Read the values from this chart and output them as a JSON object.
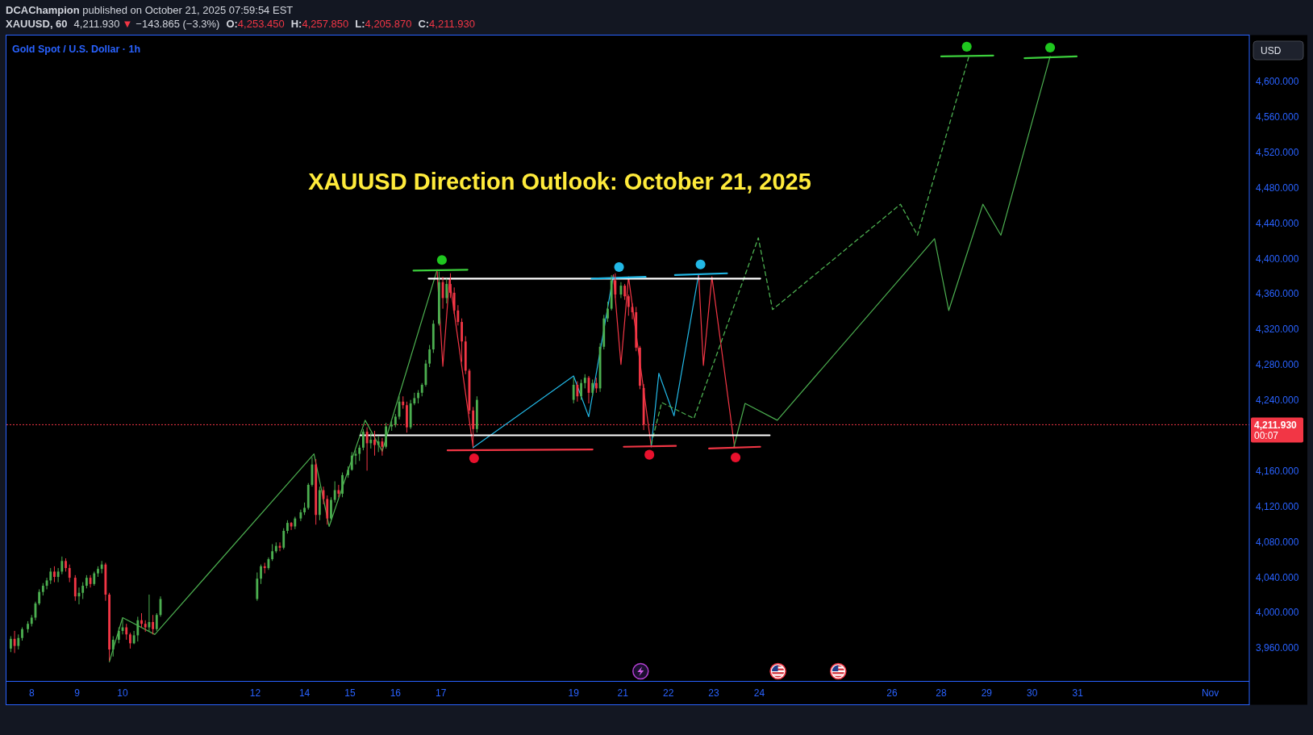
{
  "chart_data": {
    "type": "candlestick",
    "title": "XAUUSD Direction Outlook: October 21, 2025",
    "subtitle": "Gold Spot / U.S. Dollar · 1h",
    "annotations": [
      "DCAChampion published on October 21, 2025 07:59:54 EST",
      "XAUUSD, 60",
      "4,211.930",
      "▼",
      "−143.865 (−3.3%)",
      "O:4,253.450",
      "H:4,257.850",
      "L:4,205.870",
      "C:4,211.930",
      "USD",
      "00:07"
    ],
    "xlim": [
      "2025-10-07T10:42",
      "2025-11-03T18:36"
    ],
    "ylim": [
      3922,
      4652
    ],
    "xticks": [
      {
        "value": "2025-10-08",
        "label": "8"
      },
      {
        "value": "2025-10-09",
        "label": "9"
      },
      {
        "value": "2025-10-10",
        "label": "10"
      },
      {
        "value": "2025-10-12T22:00",
        "label": "12"
      },
      {
        "value": "2025-10-14",
        "label": "14"
      },
      {
        "value": "2025-10-15",
        "label": "15"
      },
      {
        "value": "2025-10-16",
        "label": "16"
      },
      {
        "value": "2025-10-17",
        "label": "17"
      },
      {
        "value": "2025-10-19T22:00",
        "label": "19"
      },
      {
        "value": "2025-10-21",
        "label": "21"
      },
      {
        "value": "2025-10-22",
        "label": "22"
      },
      {
        "value": "2025-10-23",
        "label": "23"
      },
      {
        "value": "2025-10-24",
        "label": "24"
      },
      {
        "value": "2025-10-26T22:00",
        "label": "26"
      },
      {
        "value": "2025-10-28",
        "label": "28"
      },
      {
        "value": "2025-10-29",
        "label": "29"
      },
      {
        "value": "2025-10-30",
        "label": "30"
      },
      {
        "value": "2025-10-31",
        "label": "31"
      },
      {
        "value": "2025-11-02T22:00",
        "label": "Nov"
      }
    ],
    "yticks": [
      {
        "value": 3960,
        "label": "3,960.000"
      },
      {
        "value": 4000,
        "label": "4,000.000"
      },
      {
        "value": 4040,
        "label": "4,040.000"
      },
      {
        "value": 4080,
        "label": "4,080.000"
      },
      {
        "value": 4120,
        "label": "4,120.000"
      },
      {
        "value": 4160,
        "label": "4,160.000"
      },
      {
        "value": 4240,
        "label": "4,240.000"
      },
      {
        "value": 4280,
        "label": "4,280.000"
      },
      {
        "value": 4320,
        "label": "4,320.000"
      },
      {
        "value": 4360,
        "label": "4,360.000"
      },
      {
        "value": 4400,
        "label": "4,400.000"
      },
      {
        "value": 4440,
        "label": "4,440.000"
      },
      {
        "value": 4480,
        "label": "4,480.000"
      },
      {
        "value": 4520,
        "label": "4,520.000"
      },
      {
        "value": 4560,
        "label": "4,560.000"
      },
      {
        "value": 4600,
        "label": "4,600.000"
      }
    ],
    "x": [
      "2025-10-07T13:00",
      "2025-10-07T15:00",
      "2025-10-07T17:00",
      "2025-10-07T19:00",
      "2025-10-07T22:00",
      "2025-10-08T00:00",
      "2025-10-08T02:00",
      "2025-10-08T04:00",
      "2025-10-08T06:00",
      "2025-10-08T08:00",
      "2025-10-08T10:00",
      "2025-10-08T12:00",
      "2025-10-08T14:00",
      "2025-10-08T16:00",
      "2025-10-08T18:00",
      "2025-10-08T20:00",
      "2025-10-08T23:00",
      "2025-10-09T01:00",
      "2025-10-09T03:00",
      "2025-10-09T05:00",
      "2025-10-09T07:00",
      "2025-10-09T09:00",
      "2025-10-09T11:00",
      "2025-10-09T13:00",
      "2025-10-09T15:00",
      "2025-10-09T17:00",
      "2025-10-09T19:00",
      "2025-10-09T22:00",
      "2025-10-10T00:00",
      "2025-10-10T02:00",
      "2025-10-10T04:00",
      "2025-10-10T06:00",
      "2025-10-10T08:00",
      "2025-10-10T10:00",
      "2025-10-10T12:00",
      "2025-10-10T14:00",
      "2025-10-10T16:00",
      "2025-10-10T18:00",
      "2025-10-10T20:00",
      "2025-10-12T23:00",
      "2025-10-13T01:00",
      "2025-10-13T03:00",
      "2025-10-13T05:00",
      "2025-10-13T07:00",
      "2025-10-13T09:00",
      "2025-10-13T11:00",
      "2025-10-13T13:00",
      "2025-10-13T15:00",
      "2025-10-13T17:00",
      "2025-10-13T19:00",
      "2025-10-13T22:00",
      "2025-10-14T00:00",
      "2025-10-14T02:00",
      "2025-10-14T04:00",
      "2025-10-14T06:00",
      "2025-10-14T08:00",
      "2025-10-14T10:00",
      "2025-10-14T12:00",
      "2025-10-14T14:00",
      "2025-10-14T16:00",
      "2025-10-14T18:00",
      "2025-10-14T20:00",
      "2025-10-14T23:00",
      "2025-10-15T01:00",
      "2025-10-15T03:00",
      "2025-10-15T05:00",
      "2025-10-15T07:00",
      "2025-10-15T09:00",
      "2025-10-15T11:00",
      "2025-10-15T13:00",
      "2025-10-15T15:00",
      "2025-10-15T17:00",
      "2025-10-15T19:00",
      "2025-10-15T22:00",
      "2025-10-16T00:00",
      "2025-10-16T02:00",
      "2025-10-16T04:00",
      "2025-10-16T06:00",
      "2025-10-16T08:00",
      "2025-10-16T10:00",
      "2025-10-16T12:00",
      "2025-10-16T14:00",
      "2025-10-16T16:00",
      "2025-10-16T18:00",
      "2025-10-16T20:00",
      "2025-10-16T23:00",
      "2025-10-17T01:00",
      "2025-10-17T03:00",
      "2025-10-17T05:00",
      "2025-10-17T07:00",
      "2025-10-17T09:00",
      "2025-10-17T11:00",
      "2025-10-17T13:00",
      "2025-10-17T15:00",
      "2025-10-17T17:00",
      "2025-10-17T19:00",
      "2025-10-19T22:00",
      "2025-10-20T00:00",
      "2025-10-20T02:00",
      "2025-10-20T04:00",
      "2025-10-20T06:00",
      "2025-10-20T08:00",
      "2025-10-20T10:00",
      "2025-10-20T12:00",
      "2025-10-20T14:00",
      "2025-10-20T16:00",
      "2025-10-20T18:00",
      "2025-10-20T20:00",
      "2025-10-20T23:00",
      "2025-10-21T01:00",
      "2025-10-21T03:00",
      "2025-10-21T05:00",
      "2025-10-21T07:00",
      "2025-10-21T09:00",
      "2025-10-21T11:00"
    ],
    "ohlc": [
      [
        3959,
        3973,
        3955,
        3970
      ],
      [
        3970,
        3979,
        3954,
        3962
      ],
      [
        3962,
        3975,
        3958,
        3971
      ],
      [
        3971,
        3983,
        3968,
        3981
      ],
      [
        3981,
        3990,
        3977,
        3987
      ],
      [
        3987,
        3997,
        3984,
        3994
      ],
      [
        3994,
        4012,
        3991,
        4010
      ],
      [
        4010,
        4026,
        4008,
        4023
      ],
      [
        4023,
        4033,
        4019,
        4030
      ],
      [
        4030,
        4039,
        4026,
        4036
      ],
      [
        4036,
        4050,
        4032,
        4046
      ],
      [
        4046,
        4052,
        4034,
        4040
      ],
      [
        4040,
        4050,
        4034,
        4046
      ],
      [
        4046,
        4063,
        4043,
        4058
      ],
      [
        4058,
        4061,
        4046,
        4050
      ],
      [
        4050,
        4054,
        4034,
        4039
      ],
      [
        4039,
        4042,
        4013,
        4018
      ],
      [
        4018,
        4028,
        4009,
        4022
      ],
      [
        4022,
        4034,
        4015,
        4030
      ],
      [
        4030,
        4042,
        4027,
        4039
      ],
      [
        4039,
        4042,
        4028,
        4032
      ],
      [
        4032,
        4046,
        4030,
        4044
      ],
      [
        4044,
        4052,
        4040,
        4049
      ],
      [
        4049,
        4058,
        4044,
        4054
      ],
      [
        4054,
        4056,
        4013,
        4020
      ],
      [
        4020,
        4022,
        3945,
        3958
      ],
      [
        3958,
        3973,
        3950,
        3969
      ],
      [
        3969,
        3983,
        3965,
        3979
      ],
      [
        3979,
        3993,
        3975,
        3983
      ],
      [
        3983,
        3987,
        3969,
        3975
      ],
      [
        3975,
        3977,
        3959,
        3965
      ],
      [
        3965,
        3979,
        3964,
        3974
      ],
      [
        3974,
        3995,
        3967,
        3991
      ],
      [
        3991,
        3999,
        3983,
        3987
      ],
      [
        3987,
        3991,
        3978,
        3983
      ],
      [
        3983,
        4020,
        3979,
        3989
      ],
      [
        3989,
        3997,
        3975,
        3981
      ],
      [
        3981,
        3999,
        3979,
        3997
      ],
      [
        3997,
        4018,
        3995,
        4015
      ],
      [
        4015,
        4045,
        4013,
        4038
      ],
      [
        4038,
        4054,
        4032,
        4052
      ],
      [
        4052,
        4056,
        4044,
        4050
      ],
      [
        4050,
        4062,
        4048,
        4060
      ],
      [
        4060,
        4077,
        4058,
        4069
      ],
      [
        4069,
        4079,
        4067,
        4075
      ],
      [
        4075,
        4079,
        4069,
        4073
      ],
      [
        4073,
        4095,
        4071,
        4092
      ],
      [
        4092,
        4104,
        4089,
        4101
      ],
      [
        4101,
        4102,
        4093,
        4097
      ],
      [
        4097,
        4108,
        4094,
        4106
      ],
      [
        4106,
        4116,
        4103,
        4113
      ],
      [
        4113,
        4124,
        4110,
        4118
      ],
      [
        4118,
        4146,
        4116,
        4144
      ],
      [
        4144,
        4175,
        4142,
        4167
      ],
      [
        4167,
        4173,
        4099,
        4110
      ],
      [
        4110,
        4142,
        4104,
        4138
      ],
      [
        4138,
        4142,
        4122,
        4128
      ],
      [
        4128,
        4132,
        4099,
        4106
      ],
      [
        4106,
        4130,
        4102,
        4127
      ],
      [
        4127,
        4148,
        4124,
        4138
      ],
      [
        4138,
        4144,
        4130,
        4134
      ],
      [
        4134,
        4158,
        4130,
        4155
      ],
      [
        4155,
        4165,
        4152,
        4161
      ],
      [
        4161,
        4181,
        4160,
        4177
      ],
      [
        4177,
        4183,
        4167,
        4179
      ],
      [
        4179,
        4189,
        4171,
        4186
      ],
      [
        4186,
        4207,
        4183,
        4204
      ],
      [
        4204,
        4209,
        4160,
        4191
      ],
      [
        4191,
        4203,
        4185,
        4195
      ],
      [
        4195,
        4205,
        4177,
        4189
      ],
      [
        4189,
        4199,
        4181,
        4193
      ],
      [
        4193,
        4197,
        4177,
        4187
      ],
      [
        4187,
        4214,
        4185,
        4210
      ],
      [
        4210,
        4216,
        4205,
        4212
      ],
      [
        4212,
        4224,
        4209,
        4221
      ],
      [
        4221,
        4244,
        4218,
        4238
      ],
      [
        4238,
        4244,
        4230,
        4234
      ],
      [
        4234,
        4238,
        4203,
        4209
      ],
      [
        4209,
        4240,
        4207,
        4236
      ],
      [
        4236,
        4248,
        4234,
        4242
      ],
      [
        4242,
        4251,
        4236,
        4248
      ],
      [
        4248,
        4259,
        4244,
        4257
      ],
      [
        4257,
        4285,
        4255,
        4281
      ],
      [
        4281,
        4302,
        4277,
        4297
      ],
      [
        4297,
        4330,
        4293,
        4326
      ],
      [
        4326,
        4385,
        4324,
        4373
      ],
      [
        4373,
        4379,
        4343,
        4355
      ],
      [
        4355,
        4377,
        4349,
        4371
      ],
      [
        4371,
        4383,
        4355,
        4361
      ],
      [
        4361,
        4367,
        4337,
        4341
      ],
      [
        4341,
        4347,
        4324,
        4328
      ],
      [
        4328,
        4332,
        4283,
        4306
      ],
      [
        4306,
        4312,
        4269,
        4273
      ],
      [
        4273,
        4275,
        4224,
        4228
      ],
      [
        4228,
        4232,
        4187,
        4207
      ],
      [
        4207,
        4244,
        4203,
        4240
      ],
      [
        4240,
        4265,
        4236,
        4257
      ],
      [
        4257,
        4261,
        4238,
        4244
      ],
      [
        4244,
        4263,
        4240,
        4259
      ],
      [
        4259,
        4269,
        4253,
        4265
      ],
      [
        4265,
        4267,
        4236,
        4248
      ],
      [
        4248,
        4263,
        4244,
        4259
      ],
      [
        4259,
        4265,
        4248,
        4253
      ],
      [
        4253,
        4304,
        4249,
        4300
      ],
      [
        4300,
        4336,
        4297,
        4332
      ],
      [
        4332,
        4351,
        4328,
        4343
      ],
      [
        4343,
        4381,
        4341,
        4375
      ],
      [
        4375,
        4383,
        4355,
        4359
      ],
      [
        4359,
        4373,
        4355,
        4369
      ],
      [
        4369,
        4371,
        4353,
        4357
      ],
      [
        4357,
        4359,
        4335,
        4345
      ],
      [
        4345,
        4349,
        4331,
        4339
      ],
      [
        4339,
        4345,
        4295,
        4299
      ],
      [
        4299,
        4301,
        4252,
        4256
      ],
      [
        4253.45,
        4257.85,
        4205.87,
        4211.93
      ]
    ],
    "colors": [
      "#4caf50",
      "#f23645",
      "#4caf50",
      "#4caf50",
      "#4caf50",
      "#4caf50",
      "#4caf50",
      "#4caf50",
      "#4caf50",
      "#4caf50",
      "#4caf50",
      "#f23645",
      "#4caf50",
      "#4caf50",
      "#f23645",
      "#f23645",
      "#f23645",
      "#4caf50",
      "#4caf50",
      "#4caf50",
      "#f23645",
      "#4caf50",
      "#4caf50",
      "#4caf50",
      "#f23645",
      "#f23645",
      "#4caf50",
      "#4caf50",
      "#4caf50",
      "#f23645",
      "#f23645",
      "#4caf50",
      "#4caf50",
      "#f23645",
      "#f23645",
      "#4caf50",
      "#f23645",
      "#4caf50",
      "#4caf50",
      "#4caf50",
      "#4caf50",
      "#f23645",
      "#4caf50",
      "#4caf50",
      "#4caf50",
      "#f23645",
      "#4caf50",
      "#4caf50",
      "#f23645",
      "#4caf50",
      "#4caf50",
      "#4caf50",
      "#4caf50",
      "#4caf50",
      "#f23645",
      "#4caf50",
      "#f23645",
      "#f23645",
      "#4caf50",
      "#4caf50",
      "#f23645",
      "#4caf50",
      "#4caf50",
      "#4caf50",
      "#4caf50",
      "#4caf50",
      "#4caf50",
      "#f23645",
      "#4caf50",
      "#f23645",
      "#4caf50",
      "#f23645",
      "#4caf50",
      "#4caf50",
      "#4caf50",
      "#4caf50",
      "#f23645",
      "#f23645",
      "#4caf50",
      "#4caf50",
      "#4caf50",
      "#4caf50",
      "#4caf50",
      "#4caf50",
      "#4caf50",
      "#4caf50",
      "#f23645",
      "#4caf50",
      "#f23645",
      "#f23645",
      "#f23645",
      "#f23645",
      "#f23645",
      "#f23645",
      "#f23645",
      "#4caf50",
      "#4caf50",
      "#f23645",
      "#4caf50",
      "#4caf50",
      "#f23645",
      "#4caf50",
      "#f23645",
      "#4caf50",
      "#4caf50",
      "#4caf50",
      "#4caf50",
      "#f23645",
      "#4caf50",
      "#f23645",
      "#f23645",
      "#f23645",
      "#f23645",
      "#f23645",
      "#f23645"
    ],
    "series": [
      {
        "type": "line",
        "color": "#4caf50",
        "x": [
          "2025-10-09T17:00",
          "2025-10-10T00:00",
          "2025-10-10T17:00",
          "2025-10-14T05:00",
          "2025-10-14T13:00",
          "2025-10-15T08:00",
          "2025-10-15T17:00",
          "2025-10-16T22:00"
        ],
        "values": [
          3944,
          3994,
          3975,
          4179,
          4097,
          4217,
          4182,
          4387
        ]
      },
      {
        "type": "line",
        "color": "#f23645",
        "x": [
          "2025-10-16T22:00",
          "2025-10-17T01:00",
          "2025-10-17T04:30",
          "2025-10-17T17:00"
        ],
        "values": [
          4385,
          4278,
          4377,
          4186
        ]
      },
      {
        "type": "line",
        "color": "#22b8e6",
        "x": [
          "2025-10-17T17:00",
          "2025-10-19T22:00",
          "2025-10-20T06:00",
          "2025-10-20T19:00"
        ],
        "values": [
          4186,
          4267,
          4221,
          4381
        ]
      },
      {
        "type": "line",
        "color": "#f23645",
        "x": [
          "2025-10-20T19:00",
          "2025-10-20T23:00",
          "2025-10-21T03:00",
          "2025-10-21T15:00"
        ],
        "values": [
          4381,
          4280,
          4379,
          4187
        ]
      },
      {
        "type": "line",
        "color": "#22b8e6",
        "x": [
          "2025-10-21T15:00",
          "2025-10-21T19:00",
          "2025-10-22T03:00",
          "2025-10-22T16:00"
        ],
        "values": [
          4187,
          4270,
          4222,
          4382
        ]
      },
      {
        "type": "line",
        "color": "#f23645",
        "x": [
          "2025-10-22T16:00",
          "2025-10-22T18:30",
          "2025-10-22T23:00",
          "2025-10-23T11:00"
        ],
        "values": [
          4382,
          4279,
          4379,
          4186
        ]
      },
      {
        "type": "line",
        "color": "#4caf50",
        "x": [
          "2025-10-23T10:30",
          "2025-10-23T16:30",
          "2025-10-24T09:30",
          "2025-10-27T20:30",
          "2025-10-28T04:00",
          "2025-10-28T22:00",
          "2025-10-29T07:30",
          "2025-10-30T09:30"
        ],
        "values": [
          4186,
          4236,
          4217,
          4422,
          4341,
          4461,
          4426,
          4628
        ]
      },
      {
        "type": "line",
        "color": "#4caf50",
        "line_style": "dashed",
        "x": [
          "2025-10-21T15:00",
          "2025-10-21T20:30",
          "2025-10-22T13:30",
          "2025-10-23T23:30",
          "2025-10-24T07:00",
          "2025-10-27T02:30",
          "2025-10-27T11:30",
          "2025-10-28T14:30"
        ],
        "values": [
          4190,
          4237,
          4219,
          4423,
          4342,
          4461,
          4426,
          4627
        ]
      },
      {
        "type": "line",
        "color": "#ffffff",
        "x": [
          "2025-10-16T17:30",
          "2025-10-24T00:30"
        ],
        "values": [
          4377,
          4377
        ]
      },
      {
        "type": "line",
        "color": "#ffffff",
        "x": [
          "2025-10-15T05:30",
          "2025-10-24T05:30"
        ],
        "values": [
          4200,
          4200
        ]
      },
      {
        "type": "line",
        "color": "#3ccf3c",
        "x": [
          "2025-10-16T09:30",
          "2025-10-17T14:00"
        ],
        "values": [
          4386,
          4387
        ]
      },
      {
        "type": "line",
        "color": "#22b8e6",
        "x": [
          "2025-10-20T07:30",
          "2025-10-21T12:00"
        ],
        "values": [
          4377,
          4379
        ]
      },
      {
        "type": "line",
        "color": "#22b8e6",
        "x": [
          "2025-10-22T03:30",
          "2025-10-23T07:00"
        ],
        "values": [
          4381,
          4383
        ]
      },
      {
        "type": "line",
        "color": "#f23645",
        "x": [
          "2025-10-17T03:30",
          "2025-10-20T08:00"
        ],
        "values": [
          4183,
          4184
        ]
      },
      {
        "type": "line",
        "color": "#f23645",
        "x": [
          "2025-10-21T00:30",
          "2025-10-22T04:00"
        ],
        "values": [
          4187,
          4188
        ]
      },
      {
        "type": "line",
        "color": "#f23645",
        "x": [
          "2025-10-22T21:30",
          "2025-10-24T00:30"
        ],
        "values": [
          4185,
          4187
        ]
      },
      {
        "type": "line",
        "color": "#3ccf3c",
        "x": [
          "2025-10-28T00:00",
          "2025-10-29T03:30"
        ],
        "values": [
          4628,
          4629
        ]
      },
      {
        "type": "line",
        "color": "#3ccf3c",
        "x": [
          "2025-10-29T20:00",
          "2025-10-30T23:30"
        ],
        "values": [
          4626,
          4628
        ]
      },
      {
        "type": "scatter",
        "marker": "circle",
        "color": "#1fc71f",
        "x": [
          "2025-10-17T00:30",
          "2025-10-28T13:30",
          "2025-10-30T09:30"
        ],
        "values": [
          4398,
          4639,
          4638
        ]
      },
      {
        "type": "scatter",
        "marker": "circle",
        "color": "#22b8e6",
        "x": [
          "2025-10-20T22:00",
          "2025-10-22T17:00"
        ],
        "values": [
          4390,
          4393
        ]
      },
      {
        "type": "scatter",
        "marker": "circle",
        "color": "#e8112d",
        "x": [
          "2025-10-17T17:30",
          "2025-10-21T14:00",
          "2025-10-23T11:30"
        ],
        "values": [
          4174,
          4178,
          4175
        ]
      }
    ],
    "ref_lines": [
      {
        "axis": "y",
        "value": 4211.93,
        "label": "4,211.930",
        "color": "#f23645",
        "line_style": "dotted"
      }
    ]
  }
}
